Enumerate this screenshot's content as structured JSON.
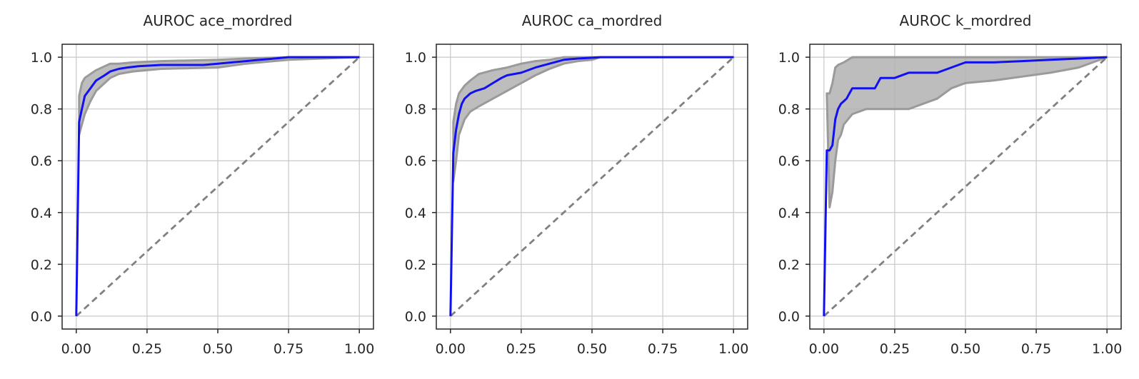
{
  "chart_data": [
    {
      "type": "line",
      "title": "AUROC ace_mordred",
      "xlim": [
        -0.05,
        1.05
      ],
      "ylim": [
        -0.05,
        1.05
      ],
      "xticks": [
        0.0,
        0.25,
        0.5,
        0.75,
        1.0
      ],
      "xtick_labels": [
        "0.00",
        "0.25",
        "0.50",
        "0.75",
        "1.00"
      ],
      "yticks": [
        0.0,
        0.2,
        0.4,
        0.6,
        0.8,
        1.0
      ],
      "ytick_labels": [
        "0.0",
        "0.2",
        "0.4",
        "0.6",
        "0.8",
        "1.0"
      ],
      "grid": true,
      "colors": {
        "roc": "#1010f0",
        "band": "#b2b2b2",
        "chance": "#808080"
      },
      "series": [
        {
          "role": "mean_roc",
          "x": [
            0,
            0.01,
            0.02,
            0.03,
            0.05,
            0.07,
            0.1,
            0.12,
            0.15,
            0.18,
            0.22,
            0.3,
            0.35,
            0.45,
            0.5,
            0.55,
            0.6,
            0.65,
            0.7,
            0.75,
            0.8,
            0.9,
            1.0
          ],
          "y": [
            0.0,
            0.75,
            0.8,
            0.85,
            0.88,
            0.91,
            0.93,
            0.945,
            0.955,
            0.96,
            0.965,
            0.97,
            0.97,
            0.97,
            0.975,
            0.98,
            0.985,
            0.99,
            0.995,
            1.0,
            1.0,
            1.0,
            1.0
          ]
        },
        {
          "role": "upper_bound",
          "x": [
            0.01,
            0.02,
            0.03,
            0.05,
            0.07,
            0.1,
            0.12,
            0.15,
            0.2,
            0.3,
            0.5,
            0.6,
            0.75,
            1.0
          ],
          "y": [
            0.85,
            0.9,
            0.92,
            0.935,
            0.95,
            0.965,
            0.975,
            0.975,
            0.98,
            0.985,
            0.99,
            0.995,
            1.0,
            1.0
          ]
        },
        {
          "role": "lower_bound",
          "x": [
            0.01,
            0.02,
            0.03,
            0.05,
            0.07,
            0.1,
            0.12,
            0.15,
            0.2,
            0.3,
            0.5,
            0.6,
            0.75,
            1.0
          ],
          "y": [
            0.7,
            0.74,
            0.78,
            0.83,
            0.87,
            0.9,
            0.92,
            0.935,
            0.945,
            0.955,
            0.96,
            0.975,
            0.99,
            1.0
          ]
        },
        {
          "role": "chance",
          "x": [
            0,
            1
          ],
          "y": [
            0,
            1
          ]
        }
      ]
    },
    {
      "type": "line",
      "title": "AUROC ca_mordred",
      "xlim": [
        -0.05,
        1.05
      ],
      "ylim": [
        -0.05,
        1.05
      ],
      "xticks": [
        0.0,
        0.25,
        0.5,
        0.75,
        1.0
      ],
      "xtick_labels": [
        "0.00",
        "0.25",
        "0.50",
        "0.75",
        "1.00"
      ],
      "yticks": [
        0.0,
        0.2,
        0.4,
        0.6,
        0.8,
        1.0
      ],
      "ytick_labels": [
        "0.0",
        "0.2",
        "0.4",
        "0.6",
        "0.8",
        "1.0"
      ],
      "grid": true,
      "colors": {
        "roc": "#1010f0",
        "band": "#b2b2b2",
        "chance": "#808080"
      },
      "series": [
        {
          "role": "mean_roc",
          "x": [
            0,
            0.01,
            0.02,
            0.03,
            0.04,
            0.05,
            0.07,
            0.09,
            0.12,
            0.15,
            0.18,
            0.2,
            0.25,
            0.3,
            0.35,
            0.4,
            0.45,
            0.5,
            0.53,
            0.6,
            0.8,
            1.0
          ],
          "y": [
            0.0,
            0.63,
            0.72,
            0.78,
            0.82,
            0.84,
            0.86,
            0.87,
            0.88,
            0.9,
            0.92,
            0.93,
            0.94,
            0.96,
            0.975,
            0.99,
            0.995,
            0.998,
            1.0,
            1.0,
            1.0,
            1.0
          ]
        },
        {
          "role": "upper_bound",
          "x": [
            0.01,
            0.02,
            0.03,
            0.05,
            0.07,
            0.1,
            0.15,
            0.2,
            0.25,
            0.3,
            0.35,
            0.4,
            0.45,
            0.5,
            1.0
          ],
          "y": [
            0.75,
            0.82,
            0.86,
            0.89,
            0.91,
            0.935,
            0.95,
            0.96,
            0.975,
            0.985,
            0.99,
            1.0,
            1.0,
            1.0,
            1.0
          ]
        },
        {
          "role": "lower_bound",
          "x": [
            0.01,
            0.02,
            0.03,
            0.05,
            0.07,
            0.1,
            0.15,
            0.2,
            0.25,
            0.3,
            0.35,
            0.4,
            0.45,
            0.5,
            0.53,
            1.0
          ],
          "y": [
            0.52,
            0.6,
            0.7,
            0.76,
            0.79,
            0.81,
            0.84,
            0.87,
            0.9,
            0.93,
            0.955,
            0.975,
            0.985,
            0.99,
            1.0,
            1.0
          ]
        },
        {
          "role": "chance",
          "x": [
            0,
            1
          ],
          "y": [
            0,
            1
          ]
        }
      ]
    },
    {
      "type": "line",
      "title": "AUROC k_mordred",
      "xlim": [
        -0.05,
        1.05
      ],
      "ylim": [
        -0.05,
        1.05
      ],
      "xticks": [
        0.0,
        0.25,
        0.5,
        0.75,
        1.0
      ],
      "xtick_labels": [
        "0.00",
        "0.25",
        "0.50",
        "0.75",
        "1.00"
      ],
      "yticks": [
        0.0,
        0.2,
        0.4,
        0.6,
        0.8,
        1.0
      ],
      "ytick_labels": [
        "0.0",
        "0.2",
        "0.4",
        "0.6",
        "0.8",
        "1.0"
      ],
      "grid": true,
      "colors": {
        "roc": "#1010f0",
        "band": "#b2b2b2",
        "chance": "#808080"
      },
      "series": [
        {
          "role": "mean_roc",
          "x": [
            0,
            0.01,
            0.02,
            0.03,
            0.04,
            0.05,
            0.06,
            0.07,
            0.08,
            0.09,
            0.1,
            0.12,
            0.15,
            0.18,
            0.2,
            0.25,
            0.3,
            0.35,
            0.4,
            0.45,
            0.5,
            0.55,
            0.6,
            0.7,
            0.8,
            0.9,
            1.0
          ],
          "y": [
            0.0,
            0.64,
            0.64,
            0.66,
            0.76,
            0.8,
            0.82,
            0.83,
            0.84,
            0.86,
            0.88,
            0.88,
            0.88,
            0.88,
            0.92,
            0.92,
            0.94,
            0.94,
            0.94,
            0.96,
            0.98,
            0.98,
            0.98,
            0.985,
            0.99,
            0.995,
            1.0
          ]
        },
        {
          "role": "upper_bound",
          "x": [
            0.01,
            0.02,
            0.03,
            0.04,
            0.05,
            0.07,
            0.1,
            1.0
          ],
          "y": [
            0.86,
            0.86,
            0.9,
            0.96,
            0.97,
            0.98,
            1.0,
            1.0
          ]
        },
        {
          "role": "lower_bound",
          "x": [
            0.02,
            0.03,
            0.04,
            0.05,
            0.06,
            0.07,
            0.1,
            0.15,
            0.2,
            0.3,
            0.4,
            0.45,
            0.5,
            0.6,
            0.7,
            0.8,
            0.9,
            1.0
          ],
          "y": [
            0.42,
            0.48,
            0.6,
            0.68,
            0.7,
            0.74,
            0.78,
            0.8,
            0.8,
            0.8,
            0.84,
            0.88,
            0.9,
            0.91,
            0.925,
            0.94,
            0.96,
            1.0
          ]
        },
        {
          "role": "chance",
          "x": [
            0,
            1
          ],
          "y": [
            0,
            1
          ]
        }
      ]
    }
  ]
}
